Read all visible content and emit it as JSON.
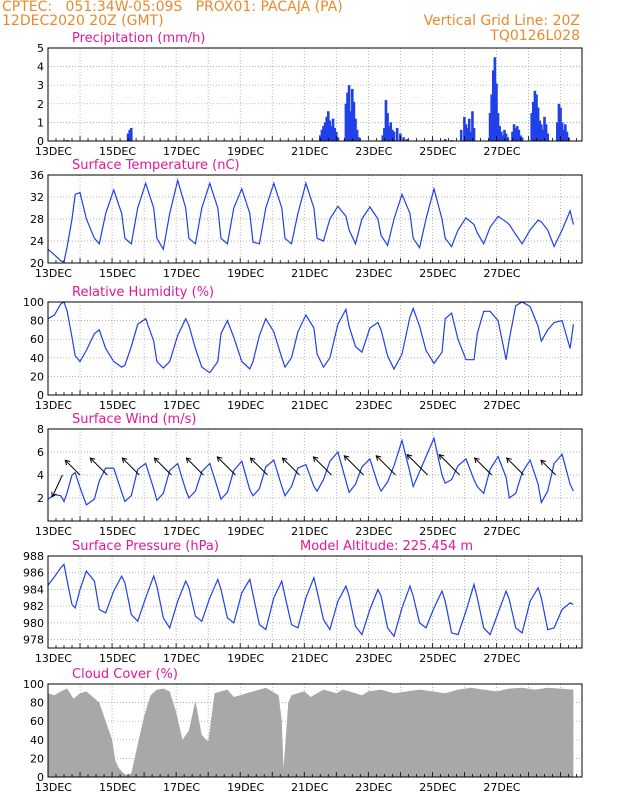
{
  "header": {
    "line1_left": "CPTEC:   051:34W-05:09S   PROX01: PACAJA (PA)",
    "line2_left": "12DEC2020 20Z (GMT)",
    "line1_right": "Vertical Grid Line: 20Z",
    "line2_right": "TQ0126L028"
  },
  "model_altitude": "Model Altitude: 225.454 m",
  "colors": {
    "header": "#e88a2c",
    "title": "#e0189a",
    "series": "#2040e8",
    "cloud": "#a8a8a8",
    "grid": "#999999"
  },
  "x_labels": [
    "13DEC",
    "15DEC",
    "17DEC",
    "19DEC",
    "21DEC",
    "23DEC",
    "25DEC",
    "27DEC"
  ],
  "chart_data": [
    {
      "type": "bar",
      "title": "Precipitation (mm/h)",
      "ylim": [
        0,
        5
      ],
      "yticks": [
        0,
        1,
        2,
        3,
        4,
        5
      ],
      "x_unit": "days since 12DEC 20Z",
      "x": [
        0.6,
        2.5,
        2.55,
        2.6,
        8.5,
        8.55,
        8.6,
        8.65,
        8.7,
        8.75,
        8.8,
        8.85,
        8.9,
        8.95,
        9.0,
        9.05,
        9.3,
        9.35,
        9.4,
        9.45,
        9.5,
        9.55,
        9.6,
        9.65,
        9.7,
        10.45,
        10.5,
        10.55,
        10.6,
        10.65,
        10.7,
        10.75,
        10.8,
        10.9,
        11.0,
        11.1,
        11.2,
        12.0,
        12.4,
        12.6,
        12.9,
        13.0,
        13.05,
        13.1,
        13.15,
        13.2,
        13.25,
        13.3,
        13.8,
        13.85,
        13.9,
        13.95,
        14.0,
        14.05,
        14.1,
        14.15,
        14.2,
        14.25,
        14.3,
        14.35,
        14.5,
        14.55,
        14.6,
        14.65,
        14.7,
        14.75,
        14.8,
        15.1,
        15.15,
        15.2,
        15.25,
        15.3,
        15.35,
        15.4,
        15.45,
        15.5,
        15.55,
        15.6,
        15.9,
        15.95,
        16.0,
        16.05,
        16.1,
        16.15,
        16.2,
        16.25
      ],
      "values": [
        0.05,
        0.4,
        0.6,
        0.7,
        0.3,
        0.6,
        0.8,
        1.0,
        1.3,
        1.6,
        1.1,
        0.8,
        1.2,
        0.7,
        0.5,
        0.2,
        2.0,
        2.6,
        3.0,
        1.6,
        2.8,
        2.1,
        1.2,
        0.6,
        0.2,
        0.3,
        0.7,
        2.2,
        1.5,
        0.8,
        1.0,
        0.6,
        0.5,
        0.7,
        0.4,
        0.2,
        0.1,
        0.05,
        0.1,
        0.05,
        0.6,
        1.3,
        0.9,
        0.7,
        1.2,
        0.5,
        1.6,
        0.7,
        1.5,
        2.5,
        3.8,
        4.5,
        3.1,
        1.5,
        0.8,
        0.5,
        0.3,
        0.6,
        0.4,
        0.2,
        0.5,
        0.9,
        0.7,
        0.8,
        0.6,
        0.3,
        0.2,
        1.5,
        2.1,
        2.7,
        2.5,
        1.8,
        1.1,
        0.9,
        0.6,
        1.3,
        0.9,
        0.4,
        1.0,
        2.0,
        1.8,
        1.0,
        0.6,
        0.9,
        0.5,
        0.2
      ]
    },
    {
      "type": "line",
      "title": "Surface Temperature (nC)",
      "ylim": [
        20,
        36
      ],
      "yticks": [
        20,
        24,
        28,
        32,
        36
      ],
      "x_unit": "days since 12DEC 20Z",
      "x": [
        0,
        0.2,
        0.4,
        0.5,
        0.6,
        0.75,
        0.85,
        1.0,
        1.2,
        1.45,
        1.6,
        1.8,
        2.05,
        2.3,
        2.4,
        2.6,
        2.8,
        3.05,
        3.3,
        3.4,
        3.6,
        3.8,
        4.05,
        4.3,
        4.4,
        4.6,
        4.8,
        5.05,
        5.3,
        5.4,
        5.6,
        5.8,
        6.05,
        6.3,
        6.4,
        6.6,
        6.8,
        7.05,
        7.3,
        7.4,
        7.6,
        7.8,
        8.05,
        8.3,
        8.4,
        8.6,
        8.8,
        9.05,
        9.3,
        9.4,
        9.6,
        9.8,
        10.05,
        10.3,
        10.4,
        10.6,
        10.8,
        11.05,
        11.3,
        11.4,
        11.6,
        11.8,
        12.05,
        12.3,
        12.4,
        12.6,
        12.8,
        13.05,
        13.3,
        13.4,
        13.6,
        13.8,
        14.05,
        14.3,
        14.4,
        14.6,
        14.8,
        15.05,
        15.3,
        15.4,
        15.6,
        15.8,
        16.05,
        16.3,
        16.4
      ],
      "values": [
        22.5,
        21.5,
        20.4,
        20.2,
        23,
        28,
        32.5,
        32.8,
        28,
        24.5,
        23.5,
        29,
        33.3,
        29,
        24.5,
        23.5,
        30,
        34.5,
        30,
        24.5,
        22.5,
        29,
        35.0,
        30,
        24.5,
        23.5,
        30,
        34.5,
        30,
        24.5,
        23.5,
        30,
        33.5,
        29,
        23.8,
        23.5,
        30,
        34.5,
        30,
        24.5,
        23.5,
        29,
        34.5,
        30,
        24.5,
        24,
        28,
        30.3,
        28.5,
        26,
        23.5,
        28,
        30.2,
        28,
        25,
        23.2,
        28,
        32.5,
        29,
        24.5,
        22.8,
        28,
        33.5,
        28,
        24.5,
        23,
        26,
        28.2,
        27.0,
        25.5,
        23.5,
        26.5,
        28.5,
        27.5,
        27.0,
        25.2,
        23.5,
        26,
        27.8,
        27.5,
        26,
        23,
        26,
        29.5,
        27.0
      ]
    },
    {
      "type": "line",
      "title": "Relative Humidity (%)",
      "ylim": [
        0,
        100
      ],
      "yticks": [
        0,
        20,
        40,
        60,
        80,
        100
      ],
      "x_unit": "days since 12DEC 20Z",
      "x": [
        0,
        0.2,
        0.4,
        0.5,
        0.6,
        0.75,
        0.85,
        1.0,
        1.2,
        1.45,
        1.6,
        1.8,
        2.05,
        2.3,
        2.4,
        2.6,
        2.8,
        3.05,
        3.3,
        3.4,
        3.6,
        3.8,
        4.05,
        4.3,
        4.4,
        4.6,
        4.8,
        5.05,
        5.3,
        5.4,
        5.6,
        5.8,
        6.05,
        6.3,
        6.4,
        6.6,
        6.8,
        7.05,
        7.3,
        7.4,
        7.6,
        7.8,
        8.05,
        8.3,
        8.4,
        8.6,
        8.8,
        9.05,
        9.3,
        9.4,
        9.6,
        9.8,
        10.05,
        10.3,
        10.4,
        10.6,
        10.8,
        11.05,
        11.3,
        11.4,
        11.6,
        11.8,
        12.05,
        12.3,
        12.4,
        12.6,
        12.8,
        13.05,
        13.3,
        13.4,
        13.6,
        13.8,
        14.05,
        14.3,
        14.4,
        14.6,
        14.8,
        15.05,
        15.3,
        15.4,
        15.6,
        15.8,
        16.05,
        16.3,
        16.4
      ],
      "values": [
        82,
        86,
        98,
        100,
        90,
        62,
        42,
        36,
        48,
        66,
        70,
        50,
        36,
        30,
        32,
        52,
        76,
        82,
        58,
        36,
        29,
        36,
        64,
        82,
        75,
        50,
        30,
        24,
        36,
        66,
        80,
        62,
        36,
        28,
        36,
        64,
        82,
        68,
        40,
        30,
        40,
        68,
        86,
        72,
        44,
        30,
        40,
        76,
        92,
        74,
        52,
        46,
        72,
        78,
        70,
        42,
        28,
        44,
        84,
        93,
        74,
        48,
        34,
        46,
        82,
        88,
        60,
        38,
        38,
        66,
        90,
        90,
        80,
        38,
        60,
        96,
        100,
        95,
        74,
        58,
        70,
        78,
        80,
        50,
        76
      ]
    },
    {
      "type": "line",
      "title": "Surface Wind (m/s)",
      "ylim": [
        0,
        8
      ],
      "yticks": [
        2,
        4,
        6,
        8
      ],
      "x_unit": "days since 12DEC 20Z",
      "x": [
        0,
        0.2,
        0.4,
        0.5,
        0.6,
        0.75,
        0.85,
        1.0,
        1.2,
        1.45,
        1.6,
        1.8,
        2.05,
        2.3,
        2.4,
        2.6,
        2.8,
        3.05,
        3.3,
        3.4,
        3.6,
        3.8,
        4.05,
        4.3,
        4.4,
        4.6,
        4.8,
        5.05,
        5.3,
        5.4,
        5.6,
        5.8,
        6.05,
        6.3,
        6.4,
        6.6,
        6.8,
        7.05,
        7.3,
        7.4,
        7.6,
        7.8,
        8.05,
        8.3,
        8.4,
        8.6,
        8.8,
        9.05,
        9.3,
        9.4,
        9.6,
        9.8,
        10.05,
        10.3,
        10.4,
        10.6,
        10.8,
        11.05,
        11.3,
        11.4,
        11.6,
        11.8,
        12.05,
        12.3,
        12.4,
        12.6,
        12.8,
        13.05,
        13.3,
        13.4,
        13.6,
        13.8,
        14.05,
        14.3,
        14.4,
        14.6,
        14.8,
        15.05,
        15.3,
        15.4,
        15.6,
        15.8,
        16.05,
        16.3,
        16.4
      ],
      "values": [
        1.9,
        2.3,
        2.2,
        1.7,
        2.5,
        4.0,
        4.2,
        2.9,
        1.4,
        1.9,
        3.5,
        4.6,
        4.6,
        2.5,
        1.7,
        2.2,
        4.5,
        5.0,
        2.8,
        1.8,
        2.4,
        4.4,
        5.0,
        2.7,
        2.0,
        2.6,
        4.3,
        5.0,
        2.8,
        1.9,
        2.5,
        4.4,
        5.2,
        2.7,
        2.2,
        2.8,
        4.7,
        5.3,
        3.0,
        2.2,
        3.0,
        4.6,
        4.9,
        3.0,
        2.6,
        3.6,
        5.2,
        6.0,
        3.5,
        2.5,
        3.2,
        4.7,
        5.4,
        3.2,
        2.6,
        3.4,
        4.8,
        7.0,
        4.2,
        3.0,
        4.3,
        5.6,
        7.2,
        4.0,
        3.3,
        3.6,
        4.8,
        5.4,
        3.6,
        3.0,
        2.4,
        4.5,
        5.6,
        3.8,
        2.0,
        2.4,
        4.2,
        5.3,
        3.2,
        1.6,
        2.6,
        5.0,
        5.8,
        3.2,
        2.6
      ]
    },
    {
      "type": "line",
      "title": "Surface Pressure (hPa)",
      "ylim": [
        977,
        988
      ],
      "yticks": [
        978,
        980,
        982,
        984,
        986,
        988
      ],
      "x_unit": "days since 12DEC 20Z",
      "x": [
        0,
        0.2,
        0.4,
        0.5,
        0.6,
        0.75,
        0.85,
        1.0,
        1.2,
        1.45,
        1.6,
        1.8,
        2.05,
        2.3,
        2.4,
        2.6,
        2.8,
        3.05,
        3.3,
        3.4,
        3.6,
        3.8,
        4.05,
        4.3,
        4.4,
        4.6,
        4.8,
        5.05,
        5.3,
        5.4,
        5.6,
        5.8,
        6.05,
        6.3,
        6.4,
        6.6,
        6.8,
        7.05,
        7.3,
        7.4,
        7.6,
        7.8,
        8.05,
        8.3,
        8.4,
        8.6,
        8.8,
        9.05,
        9.3,
        9.4,
        9.6,
        9.8,
        10.05,
        10.3,
        10.4,
        10.6,
        10.8,
        11.05,
        11.3,
        11.4,
        11.6,
        11.8,
        12.05,
        12.3,
        12.4,
        12.6,
        12.8,
        13.05,
        13.3,
        13.4,
        13.6,
        13.8,
        14.05,
        14.3,
        14.4,
        14.6,
        14.8,
        15.05,
        15.3,
        15.4,
        15.6,
        15.8,
        16.05,
        16.3,
        16.4
      ],
      "values": [
        984.5,
        985.5,
        986.6,
        987.0,
        985.0,
        982.2,
        981.8,
        984.0,
        986.2,
        985.0,
        981.6,
        981.2,
        983.8,
        985.6,
        984.8,
        981.0,
        980.2,
        983.0,
        985.6,
        984.4,
        980.6,
        979.4,
        982.6,
        985.0,
        984.2,
        980.8,
        980.2,
        983.0,
        985.2,
        984.0,
        980.6,
        980.0,
        983.6,
        985.2,
        983.4,
        979.8,
        979.2,
        983.0,
        985.0,
        983.2,
        979.8,
        979.4,
        983.0,
        985.4,
        983.8,
        980.4,
        979.2,
        982.6,
        984.4,
        983.2,
        979.6,
        978.6,
        981.6,
        984.0,
        983.2,
        979.4,
        978.4,
        981.8,
        984.4,
        983.2,
        980.0,
        979.4,
        981.8,
        983.8,
        982.6,
        978.8,
        978.6,
        981.4,
        984.6,
        983.0,
        979.4,
        978.6,
        981.2,
        983.8,
        982.8,
        979.4,
        978.8,
        982.6,
        984.2,
        983.0,
        979.2,
        979.4,
        981.6,
        982.4,
        982.2
      ]
    },
    {
      "type": "area",
      "title": "Cloud Cover (%)",
      "ylim": [
        0,
        100
      ],
      "yticks": [
        0,
        20,
        40,
        60,
        80,
        100
      ],
      "x_unit": "days since 12DEC 20Z",
      "x": [
        0,
        0.2,
        0.4,
        0.6,
        0.8,
        1.0,
        1.2,
        1.4,
        1.6,
        1.8,
        2.0,
        2.1,
        2.2,
        2.3,
        2.4,
        2.5,
        2.6,
        2.8,
        3.0,
        3.2,
        3.4,
        3.6,
        3.8,
        4.0,
        4.2,
        4.4,
        4.6,
        4.8,
        5.0,
        5.2,
        5.4,
        5.6,
        5.8,
        6.0,
        6.2,
        6.4,
        6.6,
        6.8,
        7.0,
        7.2,
        7.3,
        7.35,
        7.4,
        7.5,
        7.6,
        7.8,
        8.0,
        8.2,
        8.4,
        8.6,
        8.8,
        9.0,
        9.2,
        9.4,
        9.6,
        9.8,
        10.0,
        10.4,
        10.8,
        11.2,
        11.6,
        12.0,
        12.4,
        12.8,
        13.2,
        13.6,
        14.0,
        14.4,
        14.8,
        15.2,
        15.6,
        16.0,
        16.4
      ],
      "values": [
        90,
        88,
        92,
        95,
        84,
        90,
        92,
        86,
        80,
        60,
        40,
        18,
        10,
        6,
        3,
        2,
        4,
        35,
        65,
        88,
        94,
        95,
        92,
        70,
        40,
        50,
        82,
        45,
        38,
        90,
        92,
        94,
        86,
        88,
        90,
        92,
        94,
        96,
        92,
        88,
        60,
        10,
        30,
        80,
        88,
        90,
        92,
        86,
        90,
        94,
        92,
        90,
        94,
        92,
        90,
        88,
        92,
        94,
        90,
        92,
        94,
        92,
        90,
        94,
        96,
        94,
        92,
        95,
        96,
        94,
        96,
        95,
        94
      ]
    }
  ],
  "wind_vectors": {
    "x": [
      0.45,
      1.0,
      1.85,
      2.85,
      3.85,
      4.85,
      5.85,
      6.85,
      7.85,
      8.85,
      9.85,
      10.85,
      11.85,
      12.85,
      13.85,
      14.85,
      15.85
    ],
    "direction_deg": [
      115,
      225,
      225,
      225,
      225,
      225,
      225,
      225,
      225,
      225,
      225,
      225,
      225,
      225,
      225,
      225,
      225
    ],
    "speed": [
      3.0,
      2.6,
      3.0,
      3.0,
      3.0,
      3.0,
      3.2,
      3.0,
      3.0,
      3.2,
      3.4,
      3.4,
      3.6,
      3.6,
      3.0,
      3.0,
      2.6
    ]
  }
}
